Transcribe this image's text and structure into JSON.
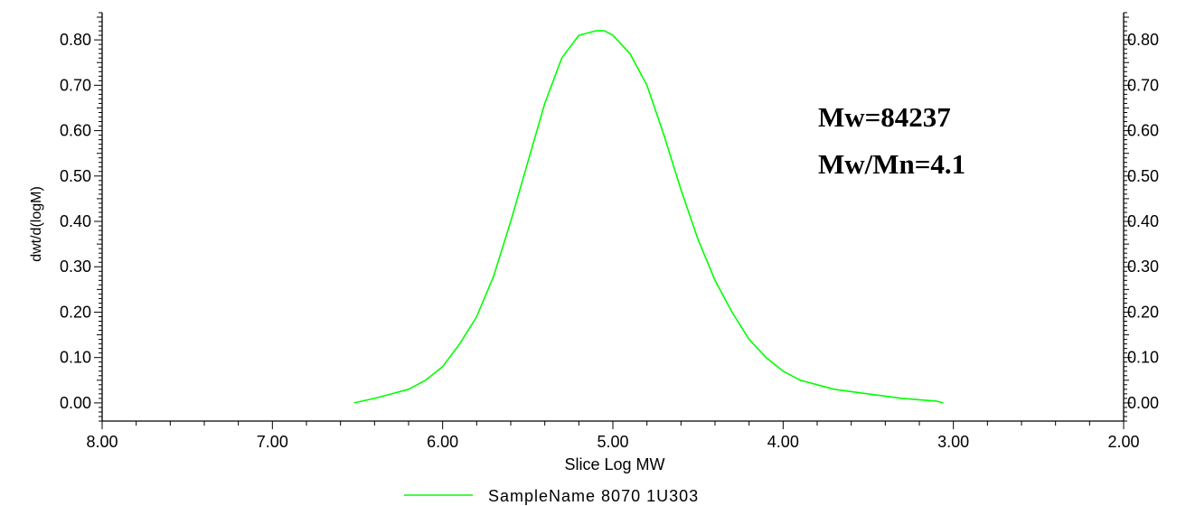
{
  "chart_data": {
    "type": "line",
    "xlabel": "Slice Log MW",
    "ylabel": "dwt/d(logM)",
    "xlim": [
      8.0,
      2.0
    ],
    "ylim": [
      -0.04,
      0.86
    ],
    "x_reversed": true,
    "grid": false,
    "right_axis": true,
    "x_ticks": [
      "8.00",
      "7.00",
      "6.00",
      "5.00",
      "4.00",
      "3.00",
      "2.00"
    ],
    "y_ticks": [
      "0.00",
      "0.10",
      "0.20",
      "0.30",
      "0.40",
      "0.50",
      "0.60",
      "0.70",
      "0.80"
    ],
    "legend_position": "bottom-center",
    "series": [
      {
        "name": "SampleName 8070   1U303",
        "color": "#00ff00",
        "x": [
          6.52,
          6.4,
          6.3,
          6.2,
          6.1,
          6.0,
          5.9,
          5.8,
          5.7,
          5.6,
          5.5,
          5.4,
          5.3,
          5.2,
          5.1,
          5.05,
          5.0,
          4.9,
          4.8,
          4.7,
          4.6,
          4.5,
          4.4,
          4.3,
          4.2,
          4.1,
          4.0,
          3.9,
          3.8,
          3.7,
          3.6,
          3.5,
          3.4,
          3.3,
          3.2,
          3.1,
          3.06
        ],
        "values": [
          0.0,
          0.01,
          0.02,
          0.03,
          0.05,
          0.08,
          0.13,
          0.19,
          0.28,
          0.4,
          0.53,
          0.66,
          0.76,
          0.81,
          0.82,
          0.82,
          0.81,
          0.77,
          0.7,
          0.59,
          0.47,
          0.36,
          0.27,
          0.2,
          0.14,
          0.1,
          0.07,
          0.05,
          0.04,
          0.03,
          0.025,
          0.02,
          0.015,
          0.01,
          0.007,
          0.004,
          0.0
        ]
      }
    ],
    "annotations": [
      "Mw=84237",
      "Mw/Mn=4.1"
    ]
  }
}
